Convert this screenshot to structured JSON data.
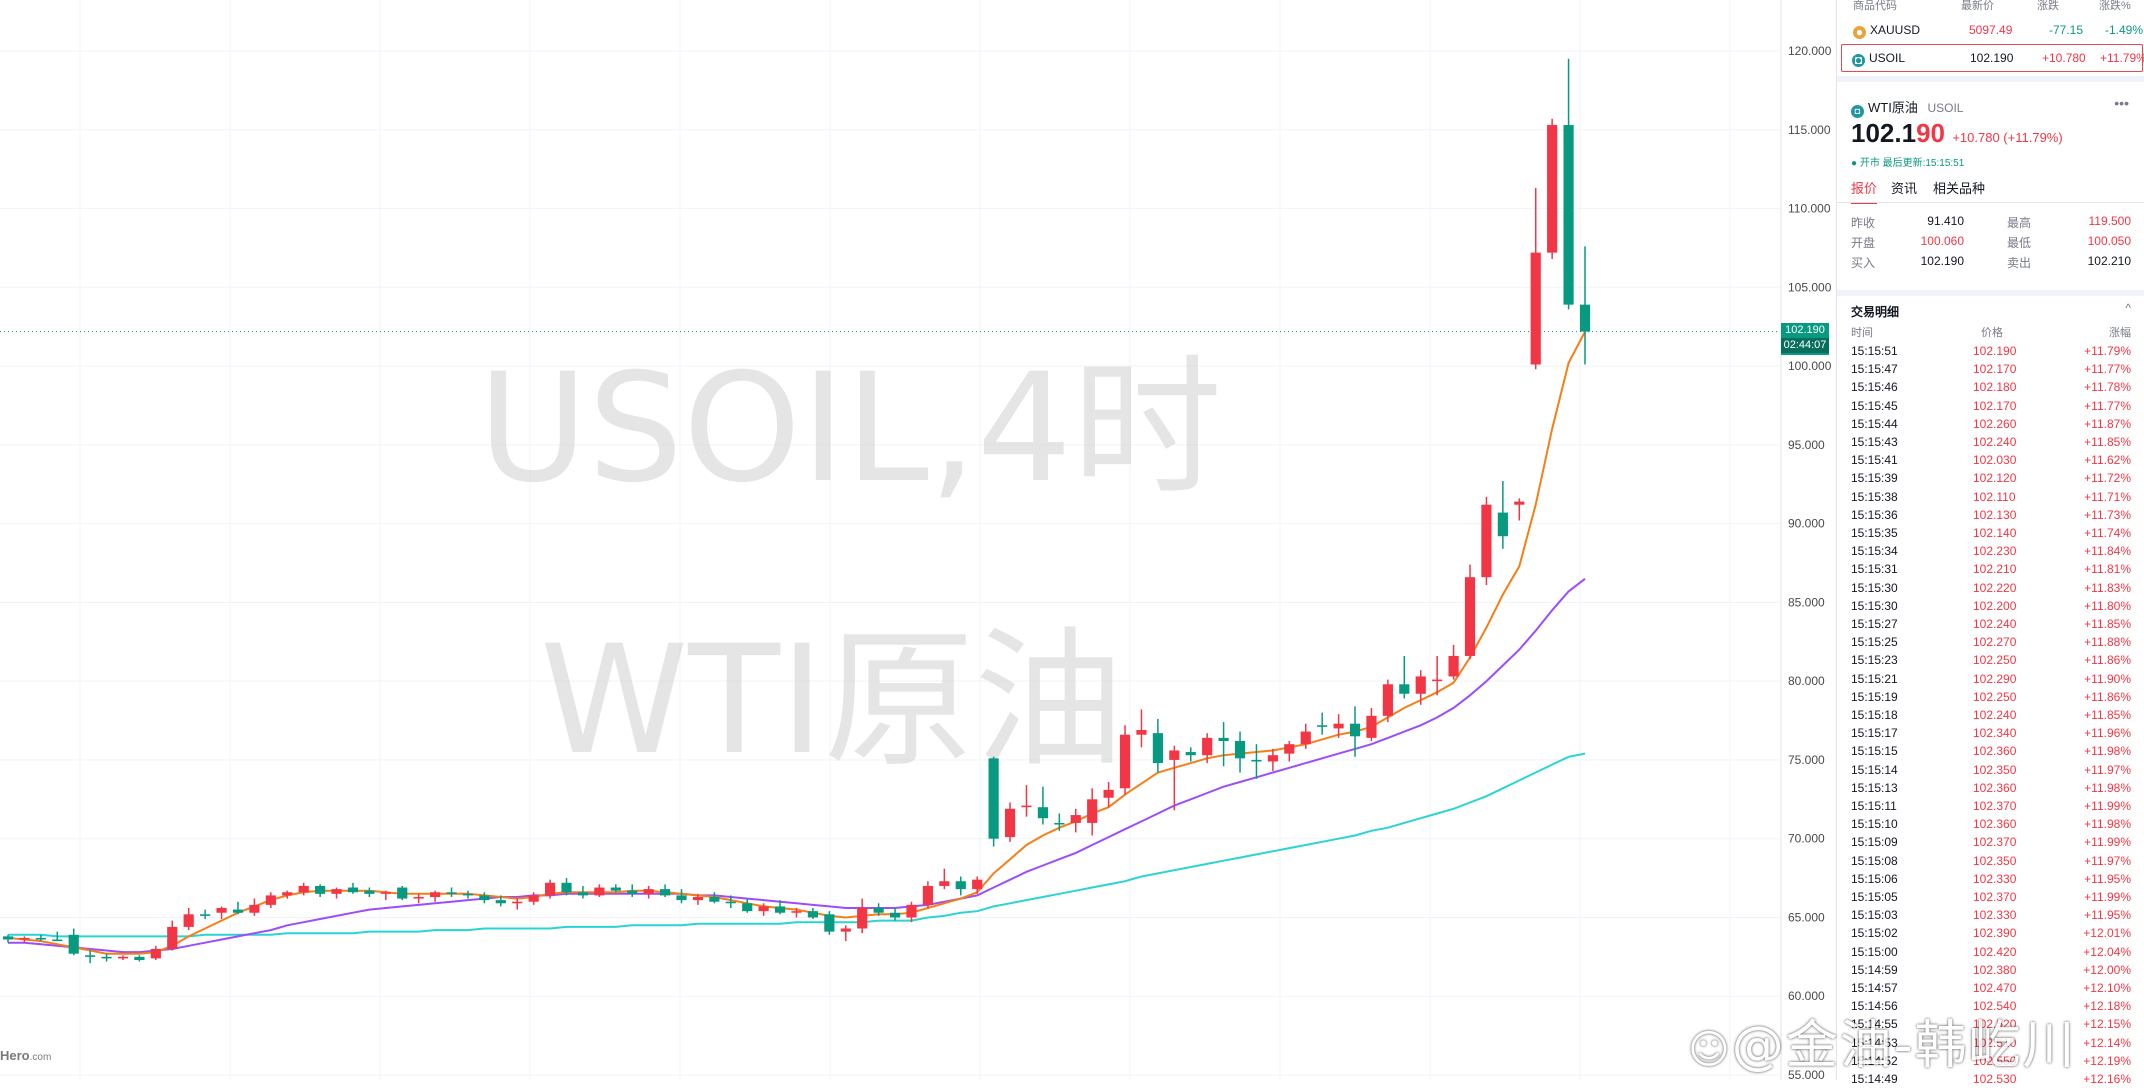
{
  "chart": {
    "watermark_line1": "USOIL,4时",
    "watermark_line2": "WTI原油",
    "brand": "Hero",
    "brand_suffix": ".com",
    "current_price_tag": "102.190",
    "countdown_tag": "02:44:07",
    "y_ticks": [
      "120.000",
      "115.000",
      "110.000",
      "105.000",
      "100.000",
      "95.000",
      "90.000",
      "85.000",
      "80.000",
      "75.000",
      "70.000",
      "65.000",
      "60.000",
      "55.000"
    ],
    "colors": {
      "up": "#f23645",
      "down": "#089981",
      "ma_orange": "#f57f17",
      "ma_purple": "#9c4dfa",
      "ma_cyan": "#2ad4d4",
      "grid": "#f0f3fa"
    }
  },
  "chart_data": {
    "type": "candlestick",
    "symbol": "USOIL",
    "timeframe": "4时",
    "ylim": [
      55,
      122
    ],
    "candles": [
      {
        "o": 63.8,
        "h": 63.9,
        "l": 63.4,
        "c": 63.6
      },
      {
        "o": 63.6,
        "h": 63.8,
        "l": 63.4,
        "c": 63.7
      },
      {
        "o": 63.7,
        "h": 63.9,
        "l": 63.5,
        "c": 63.6
      },
      {
        "o": 63.6,
        "h": 64.1,
        "l": 63.5,
        "c": 63.5
      },
      {
        "o": 63.9,
        "h": 64.3,
        "l": 62.6,
        "c": 62.7
      },
      {
        "o": 62.6,
        "h": 62.9,
        "l": 62.1,
        "c": 62.5
      },
      {
        "o": 62.5,
        "h": 62.7,
        "l": 62.2,
        "c": 62.4
      },
      {
        "o": 62.4,
        "h": 62.6,
        "l": 62.3,
        "c": 62.5
      },
      {
        "o": 62.5,
        "h": 62.6,
        "l": 62.2,
        "c": 62.3
      },
      {
        "o": 62.4,
        "h": 63.2,
        "l": 62.3,
        "c": 63.0
      },
      {
        "o": 63.0,
        "h": 64.8,
        "l": 62.9,
        "c": 64.4
      },
      {
        "o": 64.4,
        "h": 65.6,
        "l": 64.2,
        "c": 65.2
      },
      {
        "o": 65.2,
        "h": 65.5,
        "l": 64.9,
        "c": 65.1
      },
      {
        "o": 65.3,
        "h": 65.7,
        "l": 64.9,
        "c": 65.6
      },
      {
        "o": 65.5,
        "h": 66.0,
        "l": 65.2,
        "c": 65.3
      },
      {
        "o": 65.3,
        "h": 66.2,
        "l": 65.1,
        "c": 65.8
      },
      {
        "o": 65.8,
        "h": 66.6,
        "l": 65.6,
        "c": 66.4
      },
      {
        "o": 66.4,
        "h": 66.7,
        "l": 66.2,
        "c": 66.6
      },
      {
        "o": 66.6,
        "h": 67.2,
        "l": 66.4,
        "c": 67.0
      },
      {
        "o": 67.0,
        "h": 67.1,
        "l": 66.3,
        "c": 66.5
      },
      {
        "o": 66.5,
        "h": 66.9,
        "l": 66.2,
        "c": 66.8
      },
      {
        "o": 66.9,
        "h": 67.2,
        "l": 66.5,
        "c": 66.6
      },
      {
        "o": 66.7,
        "h": 66.9,
        "l": 66.3,
        "c": 66.5
      },
      {
        "o": 66.5,
        "h": 66.7,
        "l": 66.1,
        "c": 66.6
      },
      {
        "o": 66.9,
        "h": 67.0,
        "l": 66.1,
        "c": 66.2
      },
      {
        "o": 66.2,
        "h": 66.5,
        "l": 65.9,
        "c": 66.3
      },
      {
        "o": 66.3,
        "h": 66.7,
        "l": 66.0,
        "c": 66.6
      },
      {
        "o": 66.6,
        "h": 66.9,
        "l": 66.3,
        "c": 66.5
      },
      {
        "o": 66.5,
        "h": 66.7,
        "l": 66.2,
        "c": 66.4
      },
      {
        "o": 66.4,
        "h": 66.6,
        "l": 65.9,
        "c": 66.1
      },
      {
        "o": 66.1,
        "h": 66.4,
        "l": 65.7,
        "c": 65.9
      },
      {
        "o": 65.9,
        "h": 66.2,
        "l": 65.5,
        "c": 66.0
      },
      {
        "o": 66.0,
        "h": 66.6,
        "l": 65.8,
        "c": 66.4
      },
      {
        "o": 66.4,
        "h": 67.4,
        "l": 66.2,
        "c": 67.2
      },
      {
        "o": 67.2,
        "h": 67.5,
        "l": 66.4,
        "c": 66.6
      },
      {
        "o": 66.6,
        "h": 67.0,
        "l": 66.2,
        "c": 66.4
      },
      {
        "o": 66.4,
        "h": 67.1,
        "l": 66.3,
        "c": 66.9
      },
      {
        "o": 66.9,
        "h": 67.1,
        "l": 66.6,
        "c": 66.7
      },
      {
        "o": 66.7,
        "h": 67.1,
        "l": 66.3,
        "c": 66.5
      },
      {
        "o": 66.5,
        "h": 67.0,
        "l": 66.2,
        "c": 66.8
      },
      {
        "o": 66.8,
        "h": 67.1,
        "l": 66.3,
        "c": 66.4
      },
      {
        "o": 66.4,
        "h": 66.8,
        "l": 65.9,
        "c": 66.1
      },
      {
        "o": 66.1,
        "h": 66.5,
        "l": 65.8,
        "c": 66.3
      },
      {
        "o": 66.3,
        "h": 66.6,
        "l": 65.9,
        "c": 66.0
      },
      {
        "o": 66.0,
        "h": 66.4,
        "l": 65.6,
        "c": 65.9
      },
      {
        "o": 65.9,
        "h": 66.2,
        "l": 65.3,
        "c": 65.4
      },
      {
        "o": 65.4,
        "h": 65.9,
        "l": 65.1,
        "c": 65.7
      },
      {
        "o": 65.7,
        "h": 66.1,
        "l": 65.2,
        "c": 65.3
      },
      {
        "o": 65.3,
        "h": 65.6,
        "l": 65.0,
        "c": 65.4
      },
      {
        "o": 65.4,
        "h": 65.6,
        "l": 64.9,
        "c": 65.0
      },
      {
        "o": 65.2,
        "h": 65.4,
        "l": 63.9,
        "c": 64.1
      },
      {
        "o": 64.1,
        "h": 64.5,
        "l": 63.5,
        "c": 64.3
      },
      {
        "o": 64.3,
        "h": 66.2,
        "l": 64.0,
        "c": 65.6
      },
      {
        "o": 65.6,
        "h": 65.9,
        "l": 65.1,
        "c": 65.3
      },
      {
        "o": 65.3,
        "h": 65.6,
        "l": 64.8,
        "c": 65.0
      },
      {
        "o": 65.0,
        "h": 66.0,
        "l": 64.7,
        "c": 65.8
      },
      {
        "o": 65.8,
        "h": 67.3,
        "l": 65.6,
        "c": 67.0
      },
      {
        "o": 67.0,
        "h": 68.1,
        "l": 66.8,
        "c": 67.3
      },
      {
        "o": 67.3,
        "h": 67.6,
        "l": 66.4,
        "c": 66.8
      },
      {
        "o": 66.8,
        "h": 67.6,
        "l": 66.5,
        "c": 67.4
      },
      {
        "o": 75.1,
        "h": 75.2,
        "l": 69.5,
        "c": 70.0
      },
      {
        "o": 70.1,
        "h": 72.3,
        "l": 69.8,
        "c": 71.9
      },
      {
        "o": 72.0,
        "h": 73.4,
        "l": 71.4,
        "c": 72.1
      },
      {
        "o": 72.0,
        "h": 73.3,
        "l": 70.9,
        "c": 71.3
      },
      {
        "o": 71.0,
        "h": 71.6,
        "l": 70.5,
        "c": 70.9
      },
      {
        "o": 71.0,
        "h": 71.9,
        "l": 70.4,
        "c": 71.5
      },
      {
        "o": 71.0,
        "h": 73.2,
        "l": 70.2,
        "c": 72.5
      },
      {
        "o": 72.6,
        "h": 73.6,
        "l": 72.0,
        "c": 73.1
      },
      {
        "o": 73.2,
        "h": 77.2,
        "l": 72.8,
        "c": 76.6
      },
      {
        "o": 76.6,
        "h": 78.2,
        "l": 75.8,
        "c": 76.9
      },
      {
        "o": 76.7,
        "h": 77.6,
        "l": 74.2,
        "c": 74.8
      },
      {
        "o": 75.0,
        "h": 75.9,
        "l": 71.8,
        "c": 75.6
      },
      {
        "o": 75.5,
        "h": 75.8,
        "l": 74.9,
        "c": 75.3
      },
      {
        "o": 75.3,
        "h": 76.7,
        "l": 74.8,
        "c": 76.4
      },
      {
        "o": 76.4,
        "h": 77.4,
        "l": 74.6,
        "c": 76.2
      },
      {
        "o": 76.2,
        "h": 76.8,
        "l": 74.2,
        "c": 75.1
      },
      {
        "o": 75.0,
        "h": 76.0,
        "l": 73.8,
        "c": 74.9
      },
      {
        "o": 74.9,
        "h": 75.7,
        "l": 74.3,
        "c": 75.3
      },
      {
        "o": 75.4,
        "h": 76.2,
        "l": 74.9,
        "c": 76.0
      },
      {
        "o": 76.0,
        "h": 77.3,
        "l": 75.7,
        "c": 76.8
      },
      {
        "o": 77.2,
        "h": 78.0,
        "l": 76.6,
        "c": 77.1
      },
      {
        "o": 77.0,
        "h": 77.9,
        "l": 76.4,
        "c": 77.3
      },
      {
        "o": 77.3,
        "h": 78.4,
        "l": 75.2,
        "c": 76.5
      },
      {
        "o": 76.4,
        "h": 78.3,
        "l": 76.2,
        "c": 77.8
      },
      {
        "o": 77.8,
        "h": 80.1,
        "l": 77.4,
        "c": 79.8
      },
      {
        "o": 79.8,
        "h": 81.6,
        "l": 78.9,
        "c": 79.2
      },
      {
        "o": 79.2,
        "h": 80.7,
        "l": 78.5,
        "c": 80.3
      },
      {
        "o": 80.0,
        "h": 81.6,
        "l": 79.1,
        "c": 80.1
      },
      {
        "o": 80.3,
        "h": 82.3,
        "l": 80.1,
        "c": 81.6
      },
      {
        "o": 81.6,
        "h": 87.4,
        "l": 81.4,
        "c": 86.6
      },
      {
        "o": 86.6,
        "h": 91.7,
        "l": 86.1,
        "c": 91.2
      },
      {
        "o": 90.7,
        "h": 92.7,
        "l": 88.4,
        "c": 89.2
      },
      {
        "o": 91.2,
        "h": 91.6,
        "l": 90.2,
        "c": 91.4
      },
      {
        "o": 100.1,
        "h": 111.3,
        "l": 99.8,
        "c": 107.2
      },
      {
        "o": 107.2,
        "h": 115.7,
        "l": 106.8,
        "c": 115.3
      },
      {
        "o": 115.3,
        "h": 119.5,
        "l": 103.6,
        "c": 103.9
      },
      {
        "o": 103.9,
        "h": 107.6,
        "l": 100.1,
        "c": 102.19
      }
    ],
    "ma_orange": [
      63.7,
      63.6,
      63.5,
      63.3,
      63.1,
      62.9,
      62.7,
      62.7,
      62.7,
      62.8,
      63.2,
      63.8,
      64.3,
      64.8,
      65.3,
      65.7,
      66.1,
      66.4,
      66.6,
      66.7,
      66.7,
      66.7,
      66.7,
      66.6,
      66.5,
      66.5,
      66.5,
      66.5,
      66.5,
      66.4,
      66.3,
      66.2,
      66.3,
      66.5,
      66.6,
      66.6,
      66.6,
      66.6,
      66.7,
      66.7,
      66.6,
      66.5,
      66.4,
      66.3,
      66.1,
      65.9,
      65.7,
      65.6,
      65.5,
      65.3,
      65.1,
      65.0,
      65.1,
      65.2,
      65.2,
      65.3,
      65.6,
      65.9,
      66.2,
      66.6,
      67.8,
      68.7,
      69.6,
      70.2,
      70.7,
      71.1,
      71.6,
      72.0,
      72.8,
      73.5,
      74.2,
      74.5,
      74.8,
      75.1,
      75.3,
      75.4,
      75.5,
      75.6,
      75.8,
      76.0,
      76.3,
      76.6,
      76.8,
      77.1,
      77.7,
      78.3,
      78.8,
      79.3,
      79.9,
      81.5,
      83.4,
      85.5,
      87.3,
      91.2,
      96.0,
      100.2,
      102.19
    ],
    "ma_purple": [
      63.4,
      63.4,
      63.3,
      63.2,
      63.1,
      63.0,
      62.9,
      62.8,
      62.8,
      62.9,
      63.0,
      63.2,
      63.4,
      63.6,
      63.8,
      64.0,
      64.2,
      64.5,
      64.7,
      64.9,
      65.1,
      65.3,
      65.5,
      65.6,
      65.7,
      65.8,
      65.9,
      66.0,
      66.1,
      66.2,
      66.3,
      66.3,
      66.4,
      66.4,
      66.5,
      66.5,
      66.5,
      66.5,
      66.5,
      66.5,
      66.5,
      66.5,
      66.4,
      66.4,
      66.3,
      66.2,
      66.1,
      66.0,
      65.9,
      65.8,
      65.7,
      65.6,
      65.6,
      65.6,
      65.6,
      65.7,
      65.8,
      66.0,
      66.2,
      66.4,
      66.9,
      67.4,
      67.9,
      68.3,
      68.7,
      69.1,
      69.6,
      70.1,
      70.6,
      71.1,
      71.6,
      72.1,
      72.5,
      72.9,
      73.3,
      73.6,
      73.9,
      74.2,
      74.5,
      74.8,
      75.1,
      75.4,
      75.7,
      76.0,
      76.4,
      76.8,
      77.2,
      77.7,
      78.3,
      79.1,
      80.0,
      81.0,
      82.0,
      83.2,
      84.5,
      85.7,
      86.5
    ],
    "ma_cyan": [
      63.9,
      63.9,
      63.9,
      63.8,
      63.8,
      63.8,
      63.8,
      63.8,
      63.8,
      63.8,
      63.8,
      63.8,
      63.9,
      63.9,
      63.9,
      63.9,
      63.9,
      64.0,
      64.0,
      64.0,
      64.0,
      64.0,
      64.1,
      64.1,
      64.1,
      64.1,
      64.2,
      64.2,
      64.2,
      64.3,
      64.3,
      64.3,
      64.3,
      64.3,
      64.4,
      64.4,
      64.4,
      64.4,
      64.5,
      64.5,
      64.5,
      64.5,
      64.6,
      64.6,
      64.6,
      64.6,
      64.6,
      64.6,
      64.7,
      64.7,
      64.7,
      64.7,
      64.7,
      64.8,
      64.8,
      64.8,
      65.0,
      65.1,
      65.3,
      65.4,
      65.7,
      65.9,
      66.1,
      66.3,
      66.5,
      66.7,
      66.9,
      67.1,
      67.3,
      67.6,
      67.8,
      68.0,
      68.2,
      68.4,
      68.6,
      68.8,
      69.0,
      69.2,
      69.4,
      69.6,
      69.8,
      70.0,
      70.2,
      70.5,
      70.7,
      71.0,
      71.3,
      71.6,
      71.9,
      72.3,
      72.7,
      73.2,
      73.7,
      74.2,
      74.7,
      75.2,
      75.4
    ]
  },
  "panel": {
    "watchlist": {
      "headers": [
        "商品代码",
        "最新价",
        "涨跌",
        "涨跌%"
      ],
      "rows": [
        {
          "symbol": "XAUUSD",
          "last": "5097.49",
          "chg": "-77.15",
          "pct": "-1.49%",
          "dir": "down",
          "icon": "gold-coin-icon",
          "selected": false
        },
        {
          "symbol": "USOIL",
          "last": "102.190",
          "chg": "+10.780",
          "pct": "+11.79%",
          "dir": "up",
          "icon": "oil-coin-icon",
          "selected": true
        }
      ]
    },
    "detail": {
      "name": "WTI原油",
      "code": "USOIL",
      "price_main": "102.1",
      "price_tail": "90",
      "change": "+10.780 (+11.79%)",
      "status": "● 开市 最后更新:15:15:51",
      "more": "•••"
    },
    "tabs": [
      "报价",
      "资讯",
      "相关品种"
    ],
    "stats": [
      {
        "label": "昨收",
        "value": "91.410",
        "label2": "最高",
        "value2": "119.500"
      },
      {
        "label": "开盘",
        "value": "100.060",
        "label2": "最低",
        "value2": "100.050"
      },
      {
        "label": "买入",
        "value": "102.190",
        "label2": "卖出",
        "value2": "102.210"
      }
    ],
    "trades_title": "交易明细",
    "trades_headers": [
      "时间",
      "价格",
      "涨幅"
    ],
    "trades": [
      [
        "15:15:51",
        "102.190",
        "+11.79%"
      ],
      [
        "15:15:47",
        "102.170",
        "+11.77%"
      ],
      [
        "15:15:46",
        "102.180",
        "+11.78%"
      ],
      [
        "15:15:45",
        "102.170",
        "+11.77%"
      ],
      [
        "15:15:44",
        "102.260",
        "+11.87%"
      ],
      [
        "15:15:43",
        "102.240",
        "+11.85%"
      ],
      [
        "15:15:41",
        "102.030",
        "+11.62%"
      ],
      [
        "15:15:39",
        "102.120",
        "+11.72%"
      ],
      [
        "15:15:38",
        "102.110",
        "+11.71%"
      ],
      [
        "15:15:36",
        "102.130",
        "+11.73%"
      ],
      [
        "15:15:35",
        "102.140",
        "+11.74%"
      ],
      [
        "15:15:34",
        "102.230",
        "+11.84%"
      ],
      [
        "15:15:31",
        "102.210",
        "+11.81%"
      ],
      [
        "15:15:30",
        "102.220",
        "+11.83%"
      ],
      [
        "15:15:30",
        "102.200",
        "+11.80%"
      ],
      [
        "15:15:27",
        "102.240",
        "+11.85%"
      ],
      [
        "15:15:25",
        "102.270",
        "+11.88%"
      ],
      [
        "15:15:23",
        "102.250",
        "+11.86%"
      ],
      [
        "15:15:21",
        "102.290",
        "+11.90%"
      ],
      [
        "15:15:19",
        "102.250",
        "+11.86%"
      ],
      [
        "15:15:18",
        "102.240",
        "+11.85%"
      ],
      [
        "15:15:17",
        "102.340",
        "+11.96%"
      ],
      [
        "15:15:15",
        "102.360",
        "+11.98%"
      ],
      [
        "15:15:14",
        "102.350",
        "+11.97%"
      ],
      [
        "15:15:13",
        "102.360",
        "+11.98%"
      ],
      [
        "15:15:11",
        "102.370",
        "+11.99%"
      ],
      [
        "15:15:10",
        "102.360",
        "+11.98%"
      ],
      [
        "15:15:09",
        "102.370",
        "+11.99%"
      ],
      [
        "15:15:08",
        "102.350",
        "+11.97%"
      ],
      [
        "15:15:06",
        "102.330",
        "+11.95%"
      ],
      [
        "15:15:05",
        "102.370",
        "+11.99%"
      ],
      [
        "15:15:03",
        "102.330",
        "+11.95%"
      ],
      [
        "15:15:02",
        "102.390",
        "+12.01%"
      ],
      [
        "15:15:00",
        "102.420",
        "+12.04%"
      ],
      [
        "15:14:59",
        "102.380",
        "+12.00%"
      ],
      [
        "15:14:57",
        "102.470",
        "+12.10%"
      ],
      [
        "15:14:56",
        "102.540",
        "+12.18%"
      ],
      [
        "15:14:55",
        "102.520",
        "+12.15%"
      ],
      [
        "15:14:53",
        "102.510",
        "+12.14%"
      ],
      [
        "15:14:52",
        "102.550",
        "+12.19%"
      ],
      [
        "15:14:49",
        "102.530",
        "+12.16%"
      ]
    ]
  },
  "overlay": {
    "weibo_watermark": "@金油-韩屹川"
  }
}
